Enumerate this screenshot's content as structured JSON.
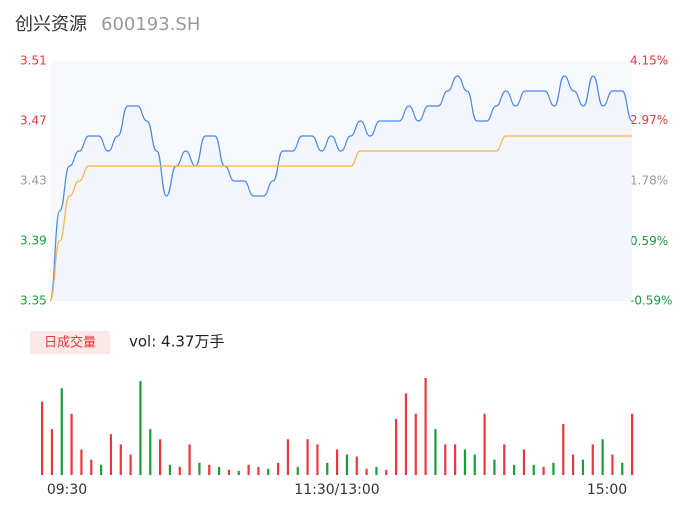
{
  "header": {
    "name": "创兴资源",
    "code": "600193.SH"
  },
  "chart_data": [
    {
      "type": "line",
      "ylim": [
        3.35,
        3.51
      ],
      "yticks": [
        3.35,
        3.39,
        3.43,
        3.47,
        3.51
      ],
      "ytick_colors": [
        "#1a9c3a",
        "#1a9c3a",
        "#999999",
        "#e8373e",
        "#e8373e"
      ],
      "y2lim": [
        -0.59,
        4.15
      ],
      "y2ticks": [
        {
          "value": -0.59,
          "label": "-0.59%"
        },
        {
          "value": 0.59,
          "label": "0.59%"
        },
        {
          "value": 1.78,
          "label": "1.78%"
        },
        {
          "value": 2.97,
          "label": "2.97%"
        },
        {
          "value": 4.15,
          "label": "4.15%"
        }
      ],
      "y2tick_colors": [
        "#1a9c3a",
        "#1a9c3a",
        "#999999",
        "#e8373e",
        "#e8373e"
      ],
      "x": [
        0,
        4,
        8,
        12,
        16,
        20,
        24,
        28,
        32,
        36,
        40,
        44,
        48,
        52,
        56,
        60,
        64,
        68,
        72,
        76,
        80,
        84,
        88,
        92,
        96,
        100,
        104,
        108,
        112,
        116,
        120,
        124,
        128,
        132,
        136,
        140,
        144,
        148,
        152,
        156,
        160,
        164,
        168,
        172,
        176,
        180,
        184,
        188,
        192,
        196,
        200,
        204,
        208,
        212,
        216,
        220,
        224,
        228,
        232,
        236,
        240
      ],
      "xlim": [
        0,
        240
      ],
      "series": [
        {
          "name": "price",
          "color": "#4a86e8",
          "values": [
            3.35,
            3.41,
            3.44,
            3.45,
            3.46,
            3.46,
            3.45,
            3.46,
            3.48,
            3.48,
            3.47,
            3.45,
            3.42,
            3.44,
            3.45,
            3.44,
            3.46,
            3.46,
            3.44,
            3.43,
            3.43,
            3.42,
            3.42,
            3.43,
            3.45,
            3.45,
            3.46,
            3.46,
            3.45,
            3.46,
            3.45,
            3.46,
            3.47,
            3.46,
            3.47,
            3.47,
            3.47,
            3.48,
            3.47,
            3.48,
            3.48,
            3.49,
            3.5,
            3.49,
            3.47,
            3.47,
            3.48,
            3.49,
            3.48,
            3.49,
            3.49,
            3.49,
            3.48,
            3.5,
            3.49,
            3.48,
            3.5,
            3.48,
            3.49,
            3.49,
            3.47
          ]
        },
        {
          "name": "average",
          "color": "#f5b342",
          "values": [
            3.35,
            3.39,
            3.42,
            3.43,
            3.44,
            3.44,
            3.44,
            3.44,
            3.44,
            3.44,
            3.44,
            3.44,
            3.44,
            3.44,
            3.44,
            3.44,
            3.44,
            3.44,
            3.44,
            3.44,
            3.44,
            3.44,
            3.44,
            3.44,
            3.44,
            3.44,
            3.44,
            3.44,
            3.44,
            3.44,
            3.44,
            3.44,
            3.45,
            3.45,
            3.45,
            3.45,
            3.45,
            3.45,
            3.45,
            3.45,
            3.45,
            3.45,
            3.45,
            3.45,
            3.45,
            3.45,
            3.45,
            3.46,
            3.46,
            3.46,
            3.46,
            3.46,
            3.46,
            3.46,
            3.46,
            3.46,
            3.46,
            3.46,
            3.46,
            3.46,
            3.46
          ]
        }
      ]
    },
    {
      "type": "bar",
      "legend": "日成交量",
      "annotation": "vol: 4.37万手",
      "categories": [
        "09:30",
        "11:30/13:00",
        "15:00"
      ],
      "category_x": [
        0,
        120,
        240
      ],
      "x": [
        0,
        4,
        8,
        12,
        16,
        20,
        24,
        28,
        32,
        36,
        40,
        44,
        48,
        52,
        56,
        60,
        64,
        68,
        72,
        76,
        80,
        84,
        88,
        92,
        96,
        100,
        104,
        108,
        112,
        116,
        120,
        124,
        128,
        132,
        136,
        140,
        144,
        148,
        152,
        156,
        160,
        164,
        168,
        172,
        176,
        180,
        184,
        188,
        192,
        196,
        200,
        204,
        208,
        212,
        216,
        220,
        224,
        228,
        232,
        236,
        240
      ],
      "values": [
        72,
        45,
        85,
        60,
        25,
        15,
        10,
        40,
        30,
        20,
        92,
        45,
        35,
        10,
        8,
        30,
        12,
        10,
        8,
        5,
        4,
        10,
        8,
        6,
        12,
        35,
        8,
        35,
        30,
        12,
        25,
        20,
        18,
        6,
        8,
        5,
        55,
        80,
        60,
        95,
        45,
        30,
        30,
        25,
        20,
        60,
        15,
        30,
        10,
        25,
        10,
        8,
        12,
        50,
        20,
        15,
        30,
        35,
        20,
        12,
        60
      ],
      "colors": [
        "#e8373e",
        "#e8373e",
        "#1a9c3a",
        "#e8373e",
        "#e8373e",
        "#e8373e",
        "#1a9c3a",
        "#e8373e",
        "#e8373e",
        "#e8373e",
        "#1a9c3a",
        "#1a9c3a",
        "#e8373e",
        "#1a9c3a",
        "#e8373e",
        "#e8373e",
        "#1a9c3a",
        "#e8373e",
        "#1a9c3a",
        "#e8373e",
        "#1a9c3a",
        "#e8373e",
        "#e8373e",
        "#1a9c3a",
        "#e8373e",
        "#e8373e",
        "#1a9c3a",
        "#e8373e",
        "#e8373e",
        "#1a9c3a",
        "#e8373e",
        "#1a9c3a",
        "#e8373e",
        "#e8373e",
        "#1a9c3a",
        "#e8373e",
        "#e8373e",
        "#e8373e",
        "#e8373e",
        "#e8373e",
        "#1a9c3a",
        "#e8373e",
        "#e8373e",
        "#1a9c3a",
        "#1a9c3a",
        "#e8373e",
        "#1a9c3a",
        "#e8373e",
        "#1a9c3a",
        "#e8373e",
        "#1a9c3a",
        "#e8373e",
        "#1a9c3a",
        "#e8373e",
        "#e8373e",
        "#1a9c3a",
        "#e8373e",
        "#1a9c3a",
        "#e8373e",
        "#1a9c3a",
        "#e8373e"
      ]
    }
  ]
}
